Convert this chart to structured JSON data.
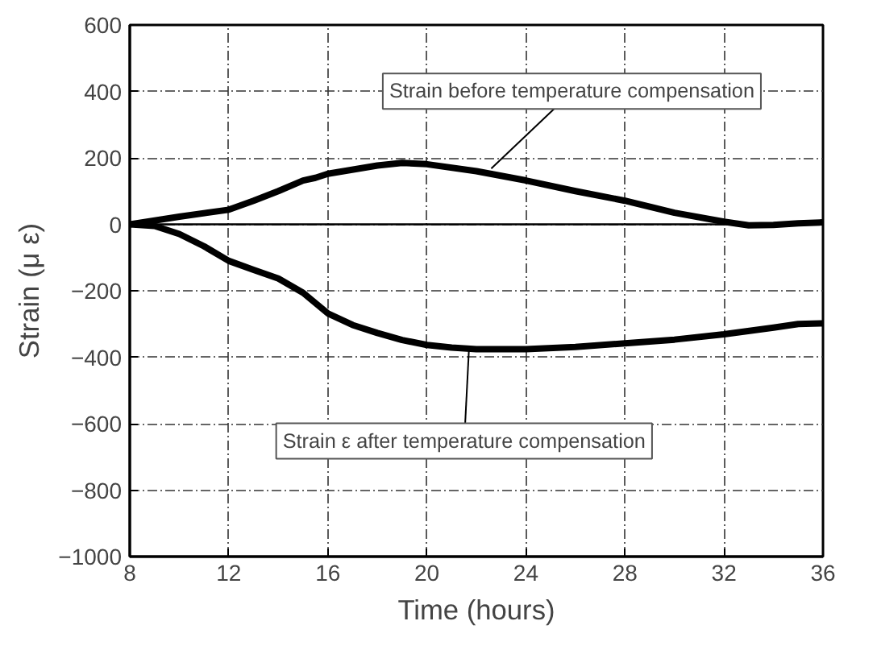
{
  "chart_data": {
    "type": "line",
    "xlabel": "Time (hours)",
    "ylabel": "Strain (μ ε)",
    "xlim": [
      8,
      36
    ],
    "xticks": [
      8,
      12,
      16,
      20,
      24,
      28,
      32,
      36
    ],
    "ylim": [
      -1000,
      600
    ],
    "yticks": [
      -1000,
      -800,
      -600,
      -400,
      -200,
      0,
      200,
      400,
      600
    ],
    "grid": true,
    "line_style": "solid",
    "marker": "none",
    "ref_lines": [
      {
        "axis": "y",
        "value": 0,
        "color": "#000000",
        "line_style": "solid"
      }
    ],
    "series": [
      {
        "color": "#000000",
        "x": [
          8,
          10,
          12,
          13,
          14,
          15,
          15.5,
          16,
          18,
          19,
          20,
          22,
          24,
          26,
          28,
          30,
          32,
          33,
          34,
          35,
          36
        ],
        "values": [
          0,
          23,
          44,
          71,
          100,
          132,
          140,
          152,
          177,
          185,
          181,
          160,
          132,
          100,
          71,
          35,
          8,
          -3,
          -2,
          3,
          6
        ]
      },
      {
        "color": "#000000",
        "x": [
          8,
          9,
          10,
          11,
          12,
          13,
          14,
          15,
          16,
          17,
          18,
          19,
          20,
          21,
          22,
          24,
          26,
          28,
          30,
          32,
          34,
          35,
          36
        ],
        "values": [
          0,
          -5,
          -29,
          -66,
          -110,
          -137,
          -163,
          -206,
          -268,
          -303,
          -327,
          -348,
          -363,
          -371,
          -376,
          -376,
          -369,
          -358,
          -347,
          -331,
          -311,
          -300,
          -298
        ]
      }
    ],
    "annotations": [
      {
        "text": "Strain before temperature compensation",
        "x": 22.6,
        "y": 168
      },
      {
        "text": "Strain ε after temperature compensation",
        "x": 21.7,
        "y": -376
      }
    ]
  }
}
